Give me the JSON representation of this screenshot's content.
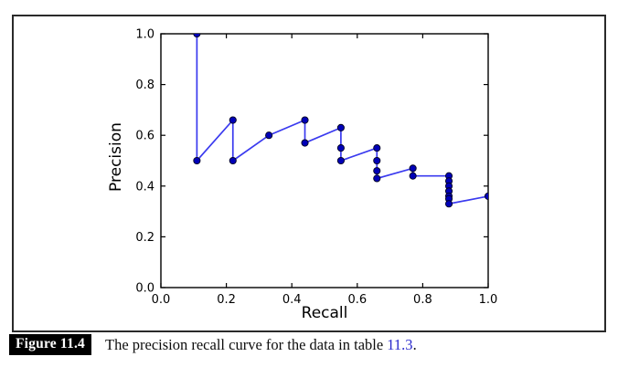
{
  "figure": {
    "caption_label": "Figure 11.4",
    "caption_text": "The precision recall curve for the data in table ",
    "caption_link": "11.3",
    "caption_suffix": "."
  },
  "chart_data": {
    "type": "line",
    "title": "",
    "xlabel": "Recall",
    "ylabel": "Precision",
    "xlim": [
      0.0,
      1.0
    ],
    "ylim": [
      0.0,
      1.0
    ],
    "x_tick_labels": [
      "0.0",
      "0.2",
      "0.4",
      "0.6",
      "0.8",
      "1.0"
    ],
    "y_tick_labels": [
      "0.0",
      "0.2",
      "0.4",
      "0.6",
      "0.8",
      "1.0"
    ],
    "grid": false,
    "legend_position": "none",
    "series": [
      {
        "name": "precision-recall-curve",
        "marker": "circle",
        "line_color": "#3a3aef",
        "marker_color": "#0000b8",
        "marker_edge_color": "#00001e",
        "points": [
          [
            0.11,
            1.0
          ],
          [
            0.11,
            0.5
          ],
          [
            0.22,
            0.66
          ],
          [
            0.22,
            0.5
          ],
          [
            0.33,
            0.6
          ],
          [
            0.44,
            0.66
          ],
          [
            0.44,
            0.57
          ],
          [
            0.55,
            0.63
          ],
          [
            0.55,
            0.55
          ],
          [
            0.55,
            0.5
          ],
          [
            0.66,
            0.55
          ],
          [
            0.66,
            0.5
          ],
          [
            0.66,
            0.46
          ],
          [
            0.66,
            0.43
          ],
          [
            0.77,
            0.47
          ],
          [
            0.77,
            0.44
          ],
          [
            0.88,
            0.44
          ],
          [
            0.88,
            0.42
          ],
          [
            0.88,
            0.4
          ],
          [
            0.88,
            0.38
          ],
          [
            0.88,
            0.36
          ],
          [
            0.88,
            0.35
          ],
          [
            0.88,
            0.33
          ],
          [
            1.0,
            0.36
          ]
        ]
      }
    ],
    "colors": {
      "spine": "#000000",
      "tick_label": "#000000",
      "figure_border": "#2a2a2a",
      "caption_badge_bg": "#000000",
      "caption_badge_fg": "#ffffff",
      "caption_link": "#2929cc"
    }
  }
}
